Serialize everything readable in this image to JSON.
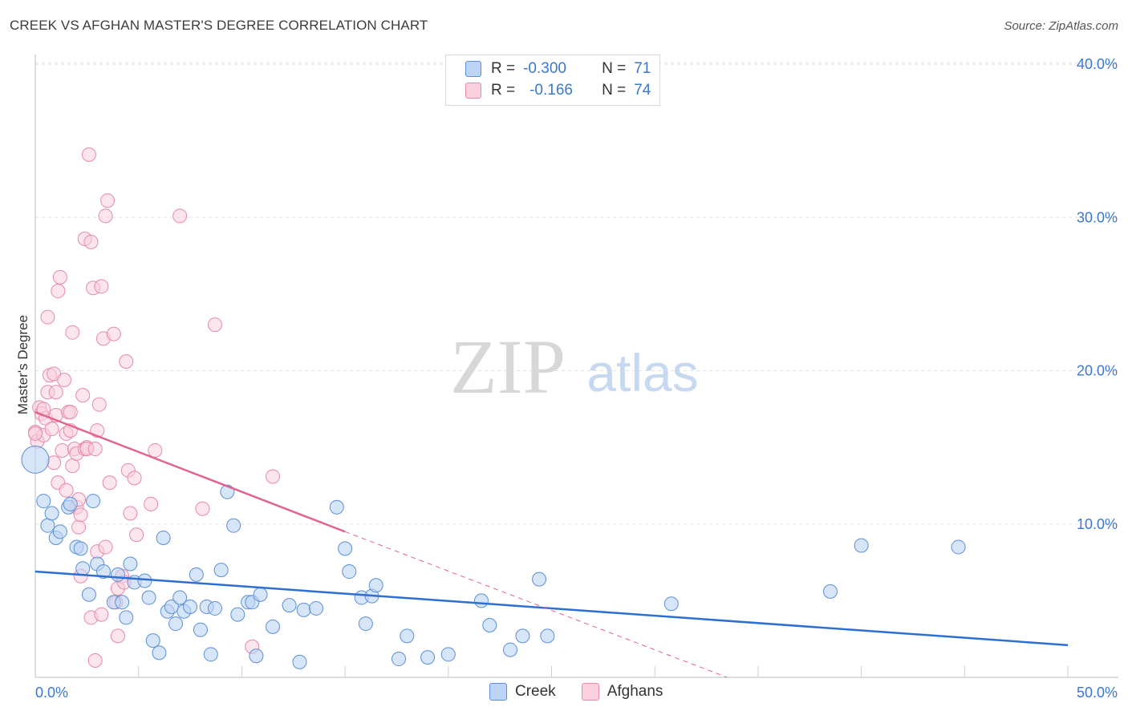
{
  "title": "CREEK VS AFGHAN MASTER'S DEGREE CORRELATION CHART",
  "source": "Source: ZipAtlas.com",
  "watermark": {
    "zip": "ZIP",
    "atlas": "atlas"
  },
  "legend": {
    "rows": [
      {
        "r_label": "R =",
        "r_value": "-0.300",
        "n_label": "N =",
        "n_value": "71"
      },
      {
        "r_label": "R =",
        "r_value": "-0.166",
        "n_label": "N =",
        "n_value": "74"
      }
    ]
  },
  "bottom_legend": {
    "creek": "Creek",
    "afghans": "Afghans"
  },
  "colors": {
    "blue_fill": "#bcd4f5",
    "blue_stroke": "#5b8fd6",
    "blue_line": "#2f6fd0",
    "pink_fill": "#fad0dd",
    "pink_stroke": "#e68aa8",
    "pink_line": "#e0648e",
    "axis_label": "#3a78d0",
    "grid": "#e2e2e2"
  },
  "chart_data": {
    "type": "scatter",
    "title": "CREEK VS AFGHAN MASTER'S DEGREE CORRELATION CHART",
    "xlabel": "",
    "ylabel": "Master's Degree",
    "xlim": [
      0,
      50
    ],
    "ylim": [
      0,
      40
    ],
    "x_tick_labels": [
      "0.0%",
      "50.0%"
    ],
    "y_tick_labels": [
      "10.0%",
      "20.0%",
      "30.0%",
      "40.0%"
    ],
    "y_ticks": [
      10,
      20,
      30,
      40
    ],
    "grid": true,
    "series": [
      {
        "name": "Creek",
        "color": "#5b8fd6",
        "trend": {
          "x": [
            0,
            50
          ],
          "y": [
            6.9,
            2.1
          ],
          "style": "solid"
        },
        "points": [
          [
            0.0,
            14.2
          ],
          [
            0.4,
            11.5
          ],
          [
            0.6,
            9.9
          ],
          [
            0.8,
            10.7
          ],
          [
            1.0,
            9.1
          ],
          [
            1.2,
            9.5
          ],
          [
            1.6,
            11.1
          ],
          [
            1.7,
            11.3
          ],
          [
            2.0,
            8.5
          ],
          [
            2.2,
            8.4
          ],
          [
            2.3,
            7.1
          ],
          [
            2.6,
            5.4
          ],
          [
            2.8,
            11.5
          ],
          [
            3.0,
            7.4
          ],
          [
            3.3,
            6.9
          ],
          [
            3.8,
            4.9
          ],
          [
            4.0,
            6.7
          ],
          [
            4.2,
            4.9
          ],
          [
            4.4,
            3.9
          ],
          [
            4.6,
            7.4
          ],
          [
            4.8,
            6.2
          ],
          [
            5.3,
            6.3
          ],
          [
            5.5,
            5.2
          ],
          [
            5.7,
            2.4
          ],
          [
            6.0,
            1.6
          ],
          [
            6.2,
            9.1
          ],
          [
            6.4,
            4.3
          ],
          [
            6.6,
            4.6
          ],
          [
            6.8,
            3.5
          ],
          [
            7.0,
            5.2
          ],
          [
            7.2,
            4.3
          ],
          [
            7.5,
            4.6
          ],
          [
            7.8,
            6.7
          ],
          [
            8.0,
            3.1
          ],
          [
            8.3,
            4.6
          ],
          [
            8.5,
            1.5
          ],
          [
            8.7,
            4.5
          ],
          [
            9.0,
            7.0
          ],
          [
            9.3,
            12.1
          ],
          [
            9.6,
            9.9
          ],
          [
            9.8,
            4.1
          ],
          [
            10.3,
            4.9
          ],
          [
            10.5,
            4.9
          ],
          [
            10.7,
            1.4
          ],
          [
            10.9,
            5.4
          ],
          [
            11.5,
            3.3
          ],
          [
            12.3,
            4.7
          ],
          [
            12.8,
            1.0
          ],
          [
            13.0,
            4.4
          ],
          [
            13.6,
            4.5
          ],
          [
            15.0,
            8.4
          ],
          [
            14.6,
            11.1
          ],
          [
            15.2,
            6.9
          ],
          [
            15.8,
            5.2
          ],
          [
            16.0,
            3.5
          ],
          [
            16.3,
            5.3
          ],
          [
            16.5,
            6.0
          ],
          [
            17.6,
            1.2
          ],
          [
            18.0,
            2.7
          ],
          [
            19.0,
            1.3
          ],
          [
            20.0,
            1.5
          ],
          [
            21.6,
            5.0
          ],
          [
            22.0,
            3.4
          ],
          [
            23.0,
            1.8
          ],
          [
            23.6,
            2.7
          ],
          [
            24.4,
            6.4
          ],
          [
            24.8,
            2.7
          ],
          [
            30.8,
            4.8
          ],
          [
            38.5,
            5.6
          ],
          [
            40.0,
            8.6
          ],
          [
            44.7,
            8.5
          ]
        ]
      },
      {
        "name": "Afghans",
        "color": "#e68aa8",
        "trend": {
          "x": [
            0,
            15
          ],
          "y": [
            17.3,
            9.5
          ],
          "style": "solid",
          "extended": {
            "x": [
              15,
              33.5
            ],
            "y": [
              9.5,
              0.0
            ],
            "style": "dashed"
          }
        },
        "points": [
          [
            0.0,
            16.0
          ],
          [
            0.1,
            15.4
          ],
          [
            0.2,
            17.6
          ],
          [
            0.3,
            17.2
          ],
          [
            0.4,
            15.8
          ],
          [
            0.5,
            16.9
          ],
          [
            0.6,
            18.6
          ],
          [
            0.6,
            23.5
          ],
          [
            0.7,
            19.7
          ],
          [
            0.8,
            16.2
          ],
          [
            0.9,
            19.8
          ],
          [
            0.9,
            14.0
          ],
          [
            1.0,
            17.1
          ],
          [
            1.1,
            12.7
          ],
          [
            1.1,
            25.2
          ],
          [
            1.2,
            26.1
          ],
          [
            1.3,
            14.8
          ],
          [
            1.4,
            19.4
          ],
          [
            1.5,
            12.2
          ],
          [
            1.5,
            15.9
          ],
          [
            1.6,
            17.3
          ],
          [
            1.7,
            16.1
          ],
          [
            1.7,
            17.3
          ],
          [
            1.8,
            13.8
          ],
          [
            1.8,
            22.5
          ],
          [
            1.9,
            14.9
          ],
          [
            2.0,
            11.1
          ],
          [
            2.0,
            14.6
          ],
          [
            2.1,
            11.6
          ],
          [
            2.1,
            9.8
          ],
          [
            2.2,
            10.6
          ],
          [
            2.2,
            6.6
          ],
          [
            2.3,
            18.4
          ],
          [
            2.4,
            14.9
          ],
          [
            2.4,
            28.6
          ],
          [
            2.5,
            15.0
          ],
          [
            2.5,
            14.9
          ],
          [
            2.6,
            34.1
          ],
          [
            2.7,
            3.9
          ],
          [
            2.7,
            28.4
          ],
          [
            2.8,
            25.4
          ],
          [
            2.9,
            1.1
          ],
          [
            3.0,
            16.1
          ],
          [
            3.0,
            8.2
          ],
          [
            3.1,
            17.8
          ],
          [
            3.2,
            4.1
          ],
          [
            3.2,
            25.5
          ],
          [
            3.3,
            22.1
          ],
          [
            3.4,
            8.5
          ],
          [
            3.4,
            30.1
          ],
          [
            3.5,
            31.1
          ],
          [
            3.6,
            12.7
          ],
          [
            3.8,
            22.4
          ],
          [
            3.9,
            4.9
          ],
          [
            4.0,
            5.8
          ],
          [
            4.0,
            2.7
          ],
          [
            4.2,
            6.6
          ],
          [
            4.3,
            6.2
          ],
          [
            4.4,
            20.6
          ],
          [
            4.5,
            13.5
          ],
          [
            4.6,
            10.7
          ],
          [
            4.8,
            13.0
          ],
          [
            4.9,
            9.3
          ],
          [
            5.6,
            11.3
          ],
          [
            5.8,
            14.8
          ],
          [
            7.0,
            30.1
          ],
          [
            8.1,
            11.0
          ],
          [
            8.7,
            23.0
          ],
          [
            10.5,
            2.0
          ],
          [
            11.5,
            13.1
          ],
          [
            0.0,
            15.9
          ],
          [
            0.4,
            17.5
          ],
          [
            1.0,
            18.6
          ],
          [
            2.9,
            14.9
          ]
        ]
      }
    ]
  }
}
